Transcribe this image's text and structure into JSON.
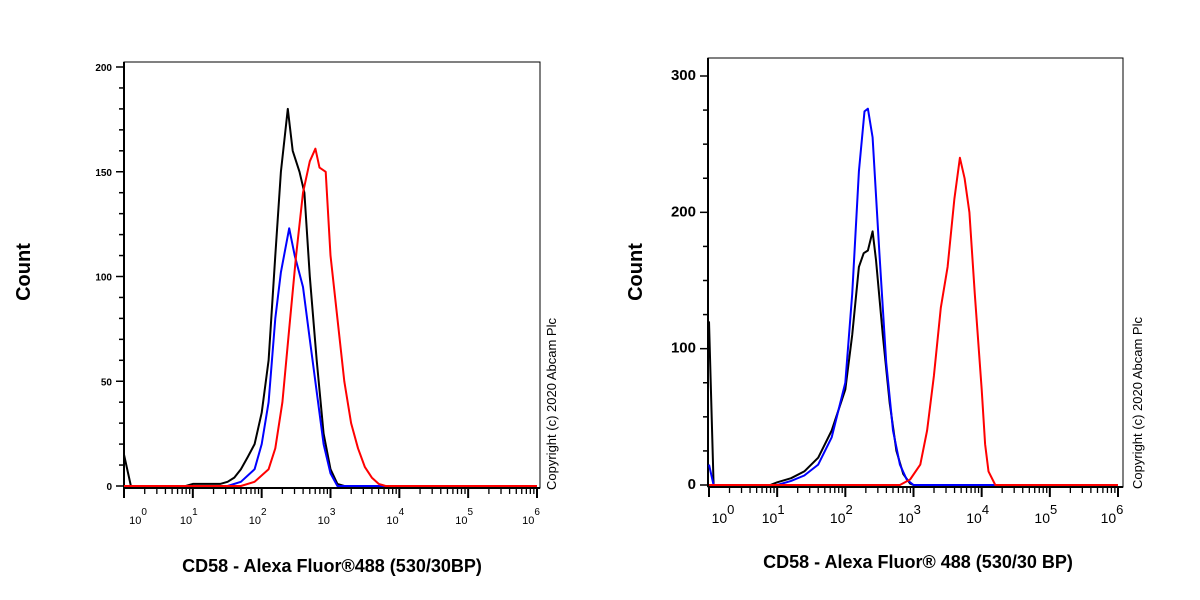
{
  "chart_data": [
    {
      "type": "line",
      "xlabel": "CD58 - Alexa Fluor®488 (530/30BP)",
      "ylabel": "Count",
      "x_scale": "log",
      "xlim": [
        1,
        1000000
      ],
      "ylim": [
        0,
        200
      ],
      "yticks": [
        "0",
        "50",
        "100",
        "150",
        "200"
      ],
      "xticks": [
        "10^0",
        "10^1",
        "10^2",
        "10^3",
        "10^4",
        "10^5",
        "10^6"
      ],
      "annotation": "Copyright (c) 2020 Abcam Plc",
      "series": [
        {
          "color": "#000000",
          "points": [
            [
              1,
              15
            ],
            [
              1.26,
              0
            ],
            [
              7.9,
              0
            ],
            [
              10,
              1
            ],
            [
              25,
              1
            ],
            [
              32,
              2
            ],
            [
              40,
              4
            ],
            [
              50,
              8
            ],
            [
              63,
              14
            ],
            [
              79,
              20
            ],
            [
              100,
              35
            ],
            [
              126,
              60
            ],
            [
              158,
              110
            ],
            [
              190,
              150
            ],
            [
              240,
              180
            ],
            [
              282,
              160
            ],
            [
              355,
              150
            ],
            [
              417,
              140
            ],
            [
              501,
              100
            ],
            [
              631,
              60
            ],
            [
              794,
              25
            ],
            [
              1000,
              8
            ],
            [
              1259,
              1
            ],
            [
              1585,
              0
            ],
            [
              1000000,
              0
            ]
          ]
        },
        {
          "color": "#0000ff",
          "points": [
            [
              1,
              0
            ],
            [
              32,
              0
            ],
            [
              50,
              2
            ],
            [
              79,
              8
            ],
            [
              100,
              20
            ],
            [
              126,
              40
            ],
            [
              158,
              80
            ],
            [
              190,
              102
            ],
            [
              251,
              123
            ],
            [
              302,
              110
            ],
            [
              398,
              95
            ],
            [
              501,
              70
            ],
            [
              631,
              45
            ],
            [
              794,
              20
            ],
            [
              1000,
              6
            ],
            [
              1259,
              0
            ],
            [
              1000000,
              0
            ]
          ]
        },
        {
          "color": "#ff0000",
          "points": [
            [
              1,
              0
            ],
            [
              50,
              0
            ],
            [
              79,
              2
            ],
            [
              126,
              8
            ],
            [
              158,
              18
            ],
            [
              200,
              40
            ],
            [
              251,
              75
            ],
            [
              316,
              110
            ],
            [
              398,
              140
            ],
            [
              501,
              155
            ],
            [
              603,
              161
            ],
            [
              692,
              152
            ],
            [
              851,
              150
            ],
            [
              1000,
              110
            ],
            [
              1259,
              80
            ],
            [
              1585,
              50
            ],
            [
              1995,
              30
            ],
            [
              2512,
              18
            ],
            [
              3162,
              9
            ],
            [
              3981,
              4
            ],
            [
              5012,
              1
            ],
            [
              6310,
              0
            ],
            [
              1000000,
              0
            ]
          ]
        }
      ]
    },
    {
      "type": "line",
      "xlabel": "CD58 - Alexa Fluor® 488 (530/30 BP)",
      "ylabel": "Count",
      "x_scale": "log",
      "xlim": [
        1,
        1000000
      ],
      "ylim": [
        0,
        300
      ],
      "yticks": [
        "0",
        "100",
        "200",
        "300"
      ],
      "xticks": [
        "10^0",
        "10^1",
        "10^2",
        "10^3",
        "10^4",
        "10^5",
        "10^6"
      ],
      "annotation": "Copyright (c) 2020 Abcam Plc",
      "series": [
        {
          "color": "#000000",
          "points": [
            [
              1,
              120
            ],
            [
              1.17,
              0
            ],
            [
              7.9,
              0
            ],
            [
              10,
              2
            ],
            [
              16,
              5
            ],
            [
              25,
              10
            ],
            [
              40,
              20
            ],
            [
              63,
              40
            ],
            [
              100,
              70
            ],
            [
              126,
              110
            ],
            [
              158,
              160
            ],
            [
              186,
              170
            ],
            [
              214,
              172
            ],
            [
              251,
              186
            ],
            [
              282,
              165
            ],
            [
              355,
              110
            ],
            [
              447,
              60
            ],
            [
              562,
              25
            ],
            [
              708,
              8
            ],
            [
              891,
              1
            ],
            [
              1000,
              0
            ],
            [
              1000000,
              0
            ]
          ]
        },
        {
          "color": "#0000ff",
          "points": [
            [
              1,
              15
            ],
            [
              1.17,
              0
            ],
            [
              10,
              0
            ],
            [
              16,
              3
            ],
            [
              25,
              7
            ],
            [
              40,
              15
            ],
            [
              63,
              35
            ],
            [
              100,
              75
            ],
            [
              126,
              140
            ],
            [
              158,
              230
            ],
            [
              191,
              274
            ],
            [
              214,
              276
            ],
            [
              251,
              255
            ],
            [
              316,
              170
            ],
            [
              398,
              90
            ],
            [
              501,
              40
            ],
            [
              631,
              15
            ],
            [
              794,
              4
            ],
            [
              1000,
              0
            ],
            [
              1000000,
              0
            ]
          ]
        },
        {
          "color": "#ff0000",
          "points": [
            [
              1,
              0
            ],
            [
              631,
              0
            ],
            [
              891,
              4
            ],
            [
              1259,
              15
            ],
            [
              1585,
              40
            ],
            [
              1995,
              80
            ],
            [
              2512,
              130
            ],
            [
              3162,
              160
            ],
            [
              3981,
              210
            ],
            [
              4786,
              240
            ],
            [
              5623,
              225
            ],
            [
              6607,
              200
            ],
            [
              7943,
              140
            ],
            [
              10000,
              70
            ],
            [
              11220,
              30
            ],
            [
              12589,
              10
            ],
            [
              15849,
              0
            ],
            [
              1000000,
              0
            ]
          ]
        }
      ]
    }
  ]
}
